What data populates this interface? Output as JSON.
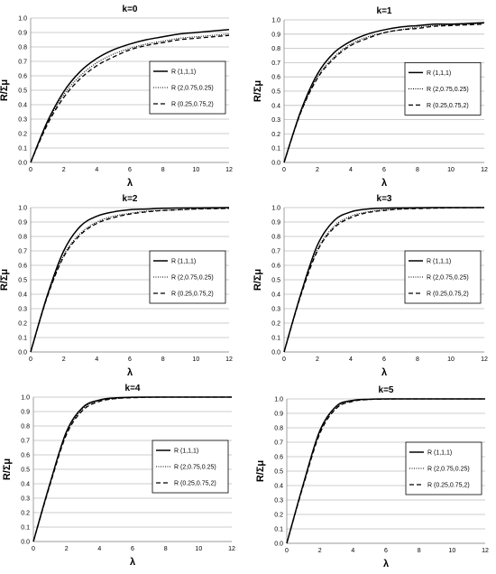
{
  "chart_data": [
    {
      "type": "line",
      "title": "k=0",
      "xlabel": "λ",
      "ylabel": "R/Σμ",
      "xlim": [
        0,
        12
      ],
      "ylim": [
        0,
        1.0
      ],
      "xticks": [
        "0",
        "2",
        "4",
        "6",
        "8",
        "10",
        "12"
      ],
      "yticks": [
        "0.0",
        "0.1",
        "0.2",
        "0.3",
        "0.4",
        "0.5",
        "0.6",
        "0.7",
        "0.8",
        "0.9",
        "1.0"
      ],
      "grid": true,
      "legend": "right",
      "x": [
        0,
        1,
        2,
        3,
        4,
        5,
        6,
        7,
        8,
        9,
        10,
        11,
        12
      ],
      "series": [
        {
          "name": "R (1,1,1)",
          "style": "solid",
          "values": [
            0,
            0.28,
            0.49,
            0.63,
            0.72,
            0.78,
            0.82,
            0.85,
            0.87,
            0.89,
            0.9,
            0.91,
            0.92
          ]
        },
        {
          "name": "R (2,0.75,0.25)",
          "style": "dotted",
          "values": [
            0,
            0.27,
            0.47,
            0.6,
            0.69,
            0.75,
            0.79,
            0.82,
            0.84,
            0.86,
            0.87,
            0.88,
            0.89
          ]
        },
        {
          "name": "R (0.25,0.75,2)",
          "style": "dashed",
          "values": [
            0,
            0.26,
            0.45,
            0.58,
            0.67,
            0.73,
            0.78,
            0.81,
            0.83,
            0.85,
            0.86,
            0.87,
            0.88
          ]
        }
      ]
    },
    {
      "type": "line",
      "title": "k=1",
      "xlabel": "λ",
      "ylabel": "R/Σμ",
      "xlim": [
        0,
        12
      ],
      "ylim": [
        0,
        1.0
      ],
      "xticks": [
        "0",
        "2",
        "4",
        "6",
        "8",
        "10",
        "12"
      ],
      "yticks": [
        "0.0",
        "0.1",
        "0.2",
        "0.3",
        "0.4",
        "0.5",
        "0.6",
        "0.7",
        "0.8",
        "0.9",
        "1.0"
      ],
      "grid": true,
      "legend": "right",
      "x": [
        0,
        1,
        2,
        3,
        4,
        5,
        6,
        7,
        8,
        9,
        10,
        11,
        12
      ],
      "series": [
        {
          "name": "R (1,1,1)",
          "style": "solid",
          "values": [
            0,
            0.36,
            0.62,
            0.77,
            0.85,
            0.9,
            0.93,
            0.95,
            0.96,
            0.97,
            0.97,
            0.975,
            0.98
          ]
        },
        {
          "name": "R (2,0.75,0.25)",
          "style": "dotted",
          "values": [
            0,
            0.35,
            0.6,
            0.74,
            0.83,
            0.88,
            0.91,
            0.93,
            0.95,
            0.96,
            0.965,
            0.97,
            0.975
          ]
        },
        {
          "name": "R (0.25,0.75,2)",
          "style": "dashed",
          "values": [
            0,
            0.35,
            0.59,
            0.73,
            0.82,
            0.87,
            0.91,
            0.93,
            0.94,
            0.955,
            0.96,
            0.965,
            0.97
          ]
        }
      ]
    },
    {
      "type": "line",
      "title": "k=2",
      "xlabel": "λ",
      "ylabel": "R/Σμ",
      "xlim": [
        0,
        12
      ],
      "ylim": [
        0,
        1.0
      ],
      "xticks": [
        "0",
        "2",
        "4",
        "6",
        "8",
        "10",
        "12"
      ],
      "yticks": [
        "0.0",
        "0.1",
        "0.2",
        "0.3",
        "0.4",
        "0.5",
        "0.6",
        "0.7",
        "0.8",
        "0.9",
        "1.0"
      ],
      "grid": true,
      "legend": "right",
      "x": [
        0,
        1,
        2,
        3,
        4,
        5,
        6,
        7,
        8,
        9,
        10,
        11,
        12
      ],
      "series": [
        {
          "name": "R (1,1,1)",
          "style": "solid",
          "values": [
            0,
            0.39,
            0.7,
            0.87,
            0.94,
            0.97,
            0.985,
            0.99,
            0.995,
            0.997,
            0.998,
            0.999,
            1.0
          ]
        },
        {
          "name": "R (2,0.75,0.25)",
          "style": "dotted",
          "values": [
            0,
            0.38,
            0.67,
            0.82,
            0.9,
            0.94,
            0.96,
            0.975,
            0.98,
            0.985,
            0.99,
            0.993,
            0.995
          ]
        },
        {
          "name": "R (0.25,0.75,2)",
          "style": "dashed",
          "values": [
            0,
            0.38,
            0.66,
            0.81,
            0.89,
            0.93,
            0.955,
            0.97,
            0.98,
            0.985,
            0.99,
            0.992,
            0.995
          ]
        }
      ]
    },
    {
      "type": "line",
      "title": "k=3",
      "xlabel": "λ",
      "ylabel": "R/Σμ",
      "xlim": [
        0,
        12
      ],
      "ylim": [
        0,
        1.0
      ],
      "xticks": [
        "0",
        "2",
        "4",
        "6",
        "8",
        "10",
        "12"
      ],
      "yticks": [
        "0.0",
        "0.1",
        "0.2",
        "0.3",
        "0.4",
        "0.5",
        "0.6",
        "0.7",
        "0.8",
        "0.9",
        "1.0"
      ],
      "grid": true,
      "legend": "right",
      "x": [
        0,
        1,
        2,
        3,
        4,
        5,
        6,
        7,
        8,
        9,
        10,
        11,
        12
      ],
      "series": [
        {
          "name": "R (1,1,1)",
          "style": "solid",
          "values": [
            0,
            0.4,
            0.74,
            0.91,
            0.97,
            0.99,
            0.996,
            0.998,
            0.999,
            1.0,
            1.0,
            1.0,
            1.0
          ]
        },
        {
          "name": "R (2,0.75,0.25)",
          "style": "dotted",
          "values": [
            0,
            0.4,
            0.71,
            0.87,
            0.94,
            0.97,
            0.985,
            0.99,
            0.995,
            0.997,
            0.998,
            0.999,
            1.0
          ]
        },
        {
          "name": "R (0.25,0.75,2)",
          "style": "dashed",
          "values": [
            0,
            0.39,
            0.7,
            0.86,
            0.93,
            0.965,
            0.98,
            0.99,
            0.993,
            0.996,
            0.998,
            0.999,
            1.0
          ]
        }
      ]
    },
    {
      "type": "line",
      "title": "k=4",
      "xlabel": "λ",
      "ylabel": "R/Σμ",
      "xlim": [
        0,
        12
      ],
      "ylim": [
        0,
        1.0
      ],
      "xticks": [
        "0",
        "2",
        "4",
        "6",
        "8",
        "10",
        "12"
      ],
      "yticks": [
        "0.0",
        "0.1",
        "0.2",
        "0.3",
        "0.4",
        "0.5",
        "0.6",
        "0.7",
        "0.8",
        "0.9",
        "1.0"
      ],
      "grid": true,
      "legend": "right",
      "x": [
        0,
        1,
        2,
        3,
        4,
        5,
        6,
        7,
        8,
        9,
        10,
        11,
        12
      ],
      "series": [
        {
          "name": "R (1,1,1)",
          "style": "solid",
          "values": [
            0,
            0.4,
            0.76,
            0.93,
            0.98,
            0.995,
            0.999,
            1.0,
            1.0,
            1.0,
            1.0,
            1.0,
            1.0
          ]
        },
        {
          "name": "R (2,0.75,0.25)",
          "style": "dotted",
          "values": [
            0,
            0.4,
            0.75,
            0.92,
            0.975,
            0.99,
            0.997,
            0.999,
            1.0,
            1.0,
            1.0,
            1.0,
            1.0
          ]
        },
        {
          "name": "R (0.25,0.75,2)",
          "style": "dashed",
          "values": [
            0,
            0.39,
            0.74,
            0.91,
            0.97,
            0.99,
            0.996,
            0.999,
            1.0,
            1.0,
            1.0,
            1.0,
            1.0
          ]
        }
      ]
    },
    {
      "type": "line",
      "title": "k=5",
      "xlabel": "λ",
      "ylabel": "R/Σμ",
      "xlim": [
        0,
        12
      ],
      "ylim": [
        0,
        1.0
      ],
      "xticks": [
        "0",
        "2",
        "4",
        "6",
        "8",
        "10",
        "12"
      ],
      "yticks": [
        "0.0",
        "0.1",
        "0.2",
        "0.3",
        "0.4",
        "0.5",
        "0.6",
        "0.7",
        "0.8",
        "0.9",
        "1.0"
      ],
      "grid": true,
      "legend": "right",
      "x": [
        0,
        1,
        2,
        3,
        4,
        5,
        6,
        7,
        8,
        9,
        10,
        11,
        12
      ],
      "series": [
        {
          "name": "R (1,1,1)",
          "style": "solid",
          "values": [
            0,
            0.41,
            0.78,
            0.95,
            0.99,
            0.998,
            1.0,
            1.0,
            1.0,
            1.0,
            1.0,
            1.0,
            1.0
          ]
        },
        {
          "name": "R (2,0.75,0.25)",
          "style": "dotted",
          "values": [
            0,
            0.41,
            0.77,
            0.94,
            0.985,
            0.997,
            1.0,
            1.0,
            1.0,
            1.0,
            1.0,
            1.0,
            1.0
          ]
        },
        {
          "name": "R (0.25,0.75,2)",
          "style": "dashed",
          "values": [
            0,
            0.4,
            0.76,
            0.935,
            0.983,
            0.996,
            0.999,
            1.0,
            1.0,
            1.0,
            1.0,
            1.0,
            1.0
          ]
        }
      ]
    }
  ]
}
